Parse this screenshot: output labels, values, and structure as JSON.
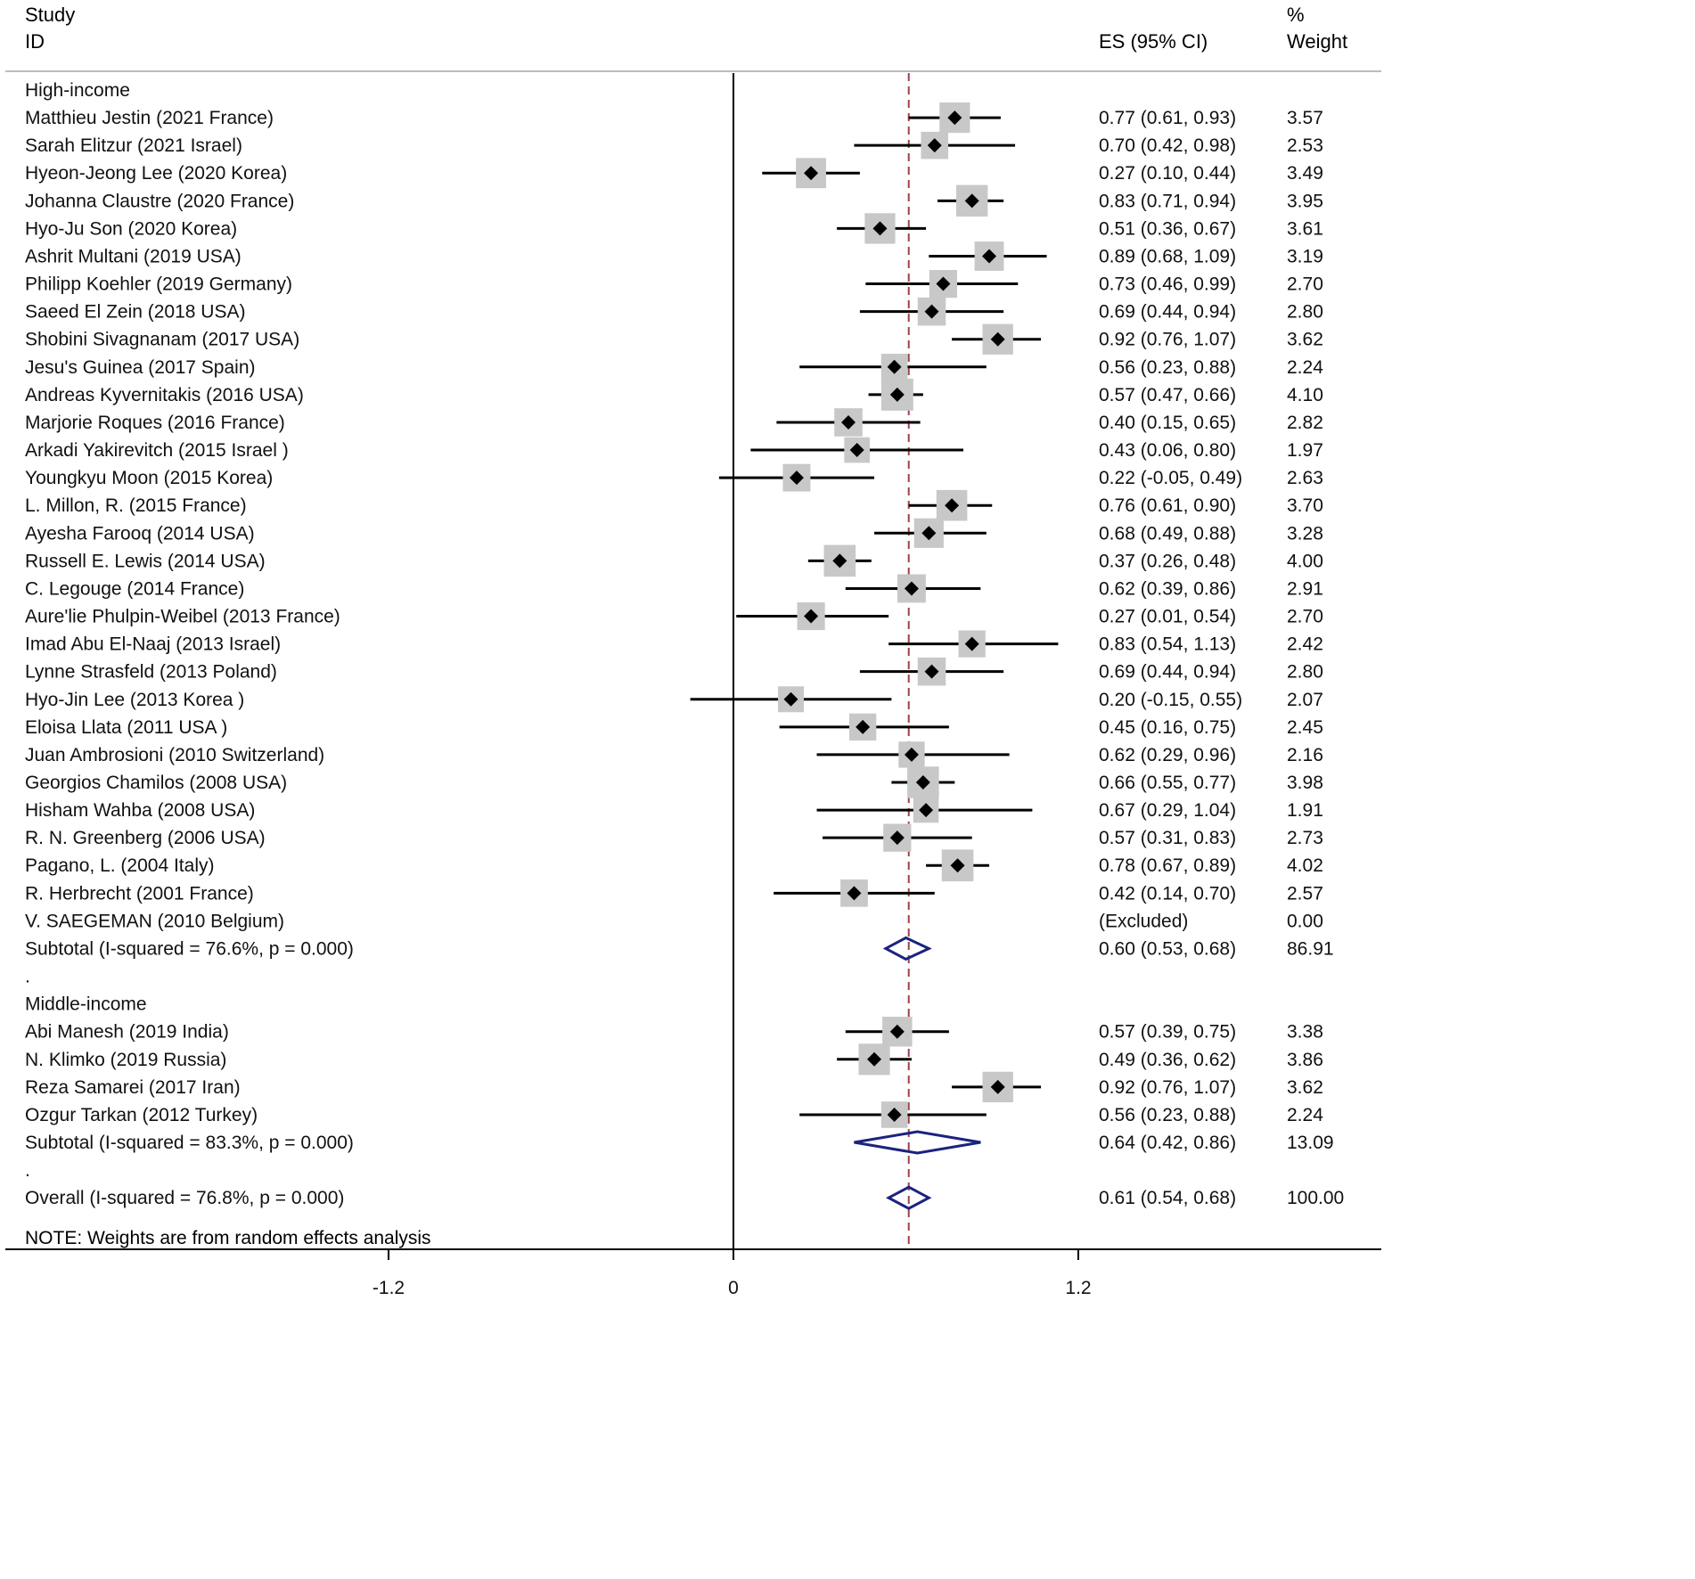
{
  "chart_data": {
    "type": "forest",
    "header": {
      "study_line1": "Study",
      "study_line2": "ID",
      "es_label": "ES (95% CI)",
      "weight_line1": "%",
      "weight_line2": "Weight"
    },
    "axis": {
      "xlim": [
        -2.55,
        2.3
      ],
      "ticks": [
        -1.2,
        0,
        1.2
      ],
      "tick_labels": [
        "-1.2",
        "0",
        "1.2"
      ],
      "reference_line": 0,
      "pooled_line": 0.61
    },
    "groups": [
      {
        "label": "High-income",
        "studies": [
          {
            "study": "Matthieu Jestin (2021 France)",
            "es": 0.77,
            "lo": 0.61,
            "hi": 0.93,
            "es_text": "0.77 (0.61, 0.93)",
            "weight": 3.57,
            "weight_text": "3.57"
          },
          {
            "study": "Sarah Elitzur (2021 Israel)",
            "es": 0.7,
            "lo": 0.42,
            "hi": 0.98,
            "es_text": "0.70 (0.42, 0.98)",
            "weight": 2.53,
            "weight_text": "2.53"
          },
          {
            "study": "Hyeon-Jeong Lee (2020 Korea)",
            "es": 0.27,
            "lo": 0.1,
            "hi": 0.44,
            "es_text": "0.27 (0.10, 0.44)",
            "weight": 3.49,
            "weight_text": "3.49"
          },
          {
            "study": "Johanna Claustre (2020 France)",
            "es": 0.83,
            "lo": 0.71,
            "hi": 0.94,
            "es_text": "0.83 (0.71, 0.94)",
            "weight": 3.95,
            "weight_text": "3.95"
          },
          {
            "study": "Hyo-Ju Son (2020 Korea)",
            "es": 0.51,
            "lo": 0.36,
            "hi": 0.67,
            "es_text": "0.51 (0.36, 0.67)",
            "weight": 3.61,
            "weight_text": "3.61"
          },
          {
            "study": "Ashrit Multani (2019 USA)",
            "es": 0.89,
            "lo": 0.68,
            "hi": 1.09,
            "es_text": "0.89 (0.68, 1.09)",
            "weight": 3.19,
            "weight_text": "3.19"
          },
          {
            "study": "Philipp Koehler (2019 Germany)",
            "es": 0.73,
            "lo": 0.46,
            "hi": 0.99,
            "es_text": "0.73 (0.46, 0.99)",
            "weight": 2.7,
            "weight_text": "2.70"
          },
          {
            "study": "Saeed El Zein (2018 USA)",
            "es": 0.69,
            "lo": 0.44,
            "hi": 0.94,
            "es_text": "0.69 (0.44, 0.94)",
            "weight": 2.8,
            "weight_text": "2.80"
          },
          {
            "study": "Shobini Sivagnanam (2017 USA)",
            "es": 0.92,
            "lo": 0.76,
            "hi": 1.07,
            "es_text": "0.92 (0.76, 1.07)",
            "weight": 3.62,
            "weight_text": "3.62"
          },
          {
            "study": "Jesu's Guinea (2017 Spain)",
            "es": 0.56,
            "lo": 0.23,
            "hi": 0.88,
            "es_text": "0.56 (0.23, 0.88)",
            "weight": 2.24,
            "weight_text": "2.24"
          },
          {
            "study": "Andreas Kyvernitakis (2016 USA)",
            "es": 0.57,
            "lo": 0.47,
            "hi": 0.66,
            "es_text": "0.57 (0.47, 0.66)",
            "weight": 4.1,
            "weight_text": "4.10"
          },
          {
            "study": "Marjorie Roques (2016 France)",
            "es": 0.4,
            "lo": 0.15,
            "hi": 0.65,
            "es_text": "0.40 (0.15, 0.65)",
            "weight": 2.82,
            "weight_text": "2.82"
          },
          {
            "study": "Arkadi Yakirevitch (2015 Israel )",
            "es": 0.43,
            "lo": 0.06,
            "hi": 0.8,
            "es_text": "0.43 (0.06, 0.80)",
            "weight": 1.97,
            "weight_text": "1.97"
          },
          {
            "study": "Youngkyu Moon (2015 Korea)",
            "es": 0.22,
            "lo": -0.05,
            "hi": 0.49,
            "es_text": "0.22 (-0.05, 0.49)",
            "weight": 2.63,
            "weight_text": "2.63"
          },
          {
            "study": "L. Millon, R. (2015 France)",
            "es": 0.76,
            "lo": 0.61,
            "hi": 0.9,
            "es_text": "0.76 (0.61, 0.90)",
            "weight": 3.7,
            "weight_text": "3.70"
          },
          {
            "study": "Ayesha Farooq (2014 USA)",
            "es": 0.68,
            "lo": 0.49,
            "hi": 0.88,
            "es_text": "0.68 (0.49, 0.88)",
            "weight": 3.28,
            "weight_text": "3.28"
          },
          {
            "study": "Russell E. Lewis (2014 USA)",
            "es": 0.37,
            "lo": 0.26,
            "hi": 0.48,
            "es_text": "0.37 (0.26, 0.48)",
            "weight": 4.0,
            "weight_text": "4.00"
          },
          {
            "study": "C. Legouge (2014 France)",
            "es": 0.62,
            "lo": 0.39,
            "hi": 0.86,
            "es_text": "0.62 (0.39, 0.86)",
            "weight": 2.91,
            "weight_text": "2.91"
          },
          {
            "study": "Aure'lie Phulpin-Weibel (2013 France)",
            "es": 0.27,
            "lo": 0.01,
            "hi": 0.54,
            "es_text": "0.27 (0.01, 0.54)",
            "weight": 2.7,
            "weight_text": "2.70"
          },
          {
            "study": "Imad Abu El-Naaj (2013 Israel)",
            "es": 0.83,
            "lo": 0.54,
            "hi": 1.13,
            "es_text": "0.83 (0.54, 1.13)",
            "weight": 2.42,
            "weight_text": "2.42"
          },
          {
            "study": "Lynne Strasfeld (2013 Poland)",
            "es": 0.69,
            "lo": 0.44,
            "hi": 0.94,
            "es_text": "0.69 (0.44, 0.94)",
            "weight": 2.8,
            "weight_text": "2.80"
          },
          {
            "study": "Hyo-Jin Lee (2013 Korea )",
            "es": 0.2,
            "lo": -0.15,
            "hi": 0.55,
            "es_text": "0.20 (-0.15, 0.55)",
            "weight": 2.07,
            "weight_text": "2.07"
          },
          {
            "study": "Eloisa Llata (2011 USA )",
            "es": 0.45,
            "lo": 0.16,
            "hi": 0.75,
            "es_text": "0.45 (0.16, 0.75)",
            "weight": 2.45,
            "weight_text": "2.45"
          },
          {
            "study": "Juan Ambrosioni (2010 Switzerland)",
            "es": 0.62,
            "lo": 0.29,
            "hi": 0.96,
            "es_text": "0.62 (0.29, 0.96)",
            "weight": 2.16,
            "weight_text": "2.16"
          },
          {
            "study": "Georgios Chamilos (2008 USA)",
            "es": 0.66,
            "lo": 0.55,
            "hi": 0.77,
            "es_text": "0.66 (0.55, 0.77)",
            "weight": 3.98,
            "weight_text": "3.98"
          },
          {
            "study": "Hisham Wahba (2008 USA)",
            "es": 0.67,
            "lo": 0.29,
            "hi": 1.04,
            "es_text": "0.67 (0.29, 1.04)",
            "weight": 1.91,
            "weight_text": "1.91"
          },
          {
            "study": "R. N. Greenberg (2006 USA)",
            "es": 0.57,
            "lo": 0.31,
            "hi": 0.83,
            "es_text": "0.57 (0.31, 0.83)",
            "weight": 2.73,
            "weight_text": "2.73"
          },
          {
            "study": "Pagano, L. (2004 Italy)",
            "es": 0.78,
            "lo": 0.67,
            "hi": 0.89,
            "es_text": "0.78 (0.67, 0.89)",
            "weight": 4.02,
            "weight_text": "4.02"
          },
          {
            "study": "R. Herbrecht (2001 France)",
            "es": 0.42,
            "lo": 0.14,
            "hi": 0.7,
            "es_text": "0.42 (0.14, 0.70)",
            "weight": 2.57,
            "weight_text": "2.57"
          },
          {
            "study": "V. SAEGEMAN (2010 Belgium)",
            "es": null,
            "lo": null,
            "hi": null,
            "es_text": "(Excluded)",
            "weight": 0.0,
            "weight_text": "0.00"
          }
        ],
        "subtotal": {
          "label": "Subtotal  (I-squared = 76.6%, p = 0.000)",
          "es": 0.6,
          "lo": 0.53,
          "hi": 0.68,
          "es_text": "0.60 (0.53, 0.68)",
          "weight_text": "86.91"
        }
      },
      {
        "label": "Middle-income",
        "studies": [
          {
            "study": "Abi Manesh (2019 India)",
            "es": 0.57,
            "lo": 0.39,
            "hi": 0.75,
            "es_text": "0.57 (0.39, 0.75)",
            "weight": 3.38,
            "weight_text": "3.38"
          },
          {
            "study": "N. Klimko (2019 Russia)",
            "es": 0.49,
            "lo": 0.36,
            "hi": 0.62,
            "es_text": "0.49 (0.36, 0.62)",
            "weight": 3.86,
            "weight_text": "3.86"
          },
          {
            "study": "Reza Samarei (2017 Iran)",
            "es": 0.92,
            "lo": 0.76,
            "hi": 1.07,
            "es_text": "0.92 (0.76, 1.07)",
            "weight": 3.62,
            "weight_text": "3.62"
          },
          {
            "study": "Ozgur Tarkan (2012 Turkey)",
            "es": 0.56,
            "lo": 0.23,
            "hi": 0.88,
            "es_text": "0.56 (0.23, 0.88)",
            "weight": 2.24,
            "weight_text": "2.24"
          }
        ],
        "subtotal": {
          "label": "Subtotal  (I-squared = 83.3%, p = 0.000)",
          "es": 0.64,
          "lo": 0.42,
          "hi": 0.86,
          "es_text": "0.64 (0.42, 0.86)",
          "weight_text": "13.09"
        }
      }
    ],
    "separator_text": ".",
    "overall": {
      "label": "Overall  (I-squared = 76.8%, p = 0.000)",
      "es": 0.61,
      "lo": 0.54,
      "hi": 0.68,
      "es_text": "0.61 (0.54, 0.68)",
      "weight_text": "100.00"
    },
    "note": "NOTE: Weights are from random effects analysis",
    "colors": {
      "text": "#111111",
      "marker": "#000000",
      "weight_box": "#c8c8c8",
      "ci_line": "#000000",
      "diamond": "#1a237e",
      "pooled_line": "#a0404a",
      "axis": "#000000",
      "divider": "#bdbdbd"
    }
  }
}
